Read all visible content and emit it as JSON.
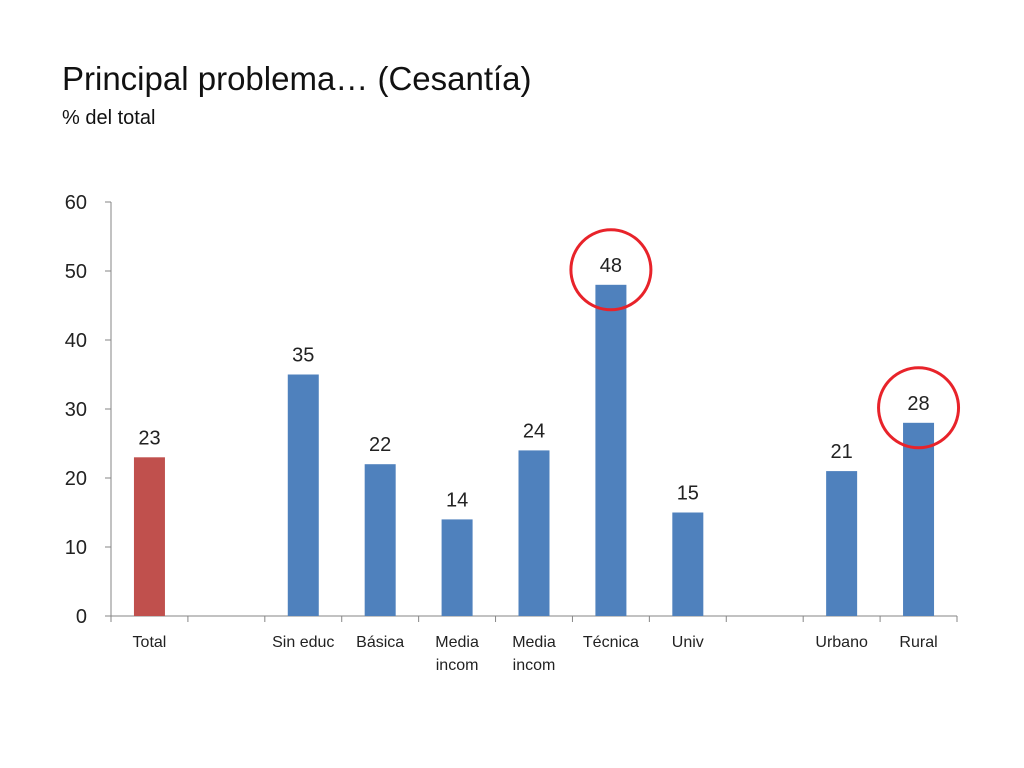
{
  "header": {
    "title": "Principal problema… (Cesantía)",
    "subtitle": "% del total"
  },
  "chart_data": {
    "type": "bar",
    "title": "",
    "xlabel": "",
    "ylabel": "",
    "ylim": [
      0,
      60
    ],
    "yticks": [
      "0",
      "10",
      "20",
      "30",
      "40",
      "50",
      "60"
    ],
    "grid": false,
    "categories": [
      [
        "Total"
      ],
      [
        ""
      ],
      [
        "Sin educ"
      ],
      [
        "Básica"
      ],
      [
        "Media",
        "incom"
      ],
      [
        "Media",
        "incom"
      ],
      [
        "Técnica"
      ],
      [
        "Univ"
      ],
      [
        ""
      ],
      [
        "Urbano"
      ],
      [
        "Rural"
      ]
    ],
    "values": [
      23,
      null,
      35,
      22,
      14,
      24,
      48,
      15,
      null,
      21,
      28
    ],
    "data_labels": [
      "23",
      "",
      "35",
      "22",
      "14",
      "24",
      "48",
      "15",
      "",
      "21",
      "28"
    ],
    "colors": [
      "#c0504d",
      "#4f81bd",
      "#4f81bd",
      "#4f81bd",
      "#4f81bd",
      "#4f81bd",
      "#4f81bd",
      "#4f81bd",
      "#4f81bd",
      "#4f81bd",
      "#4f81bd"
    ],
    "highlighted": [
      "Técnica",
      "Rural"
    ],
    "highlight_color": "#e8232a",
    "axis_color": "#868686"
  }
}
